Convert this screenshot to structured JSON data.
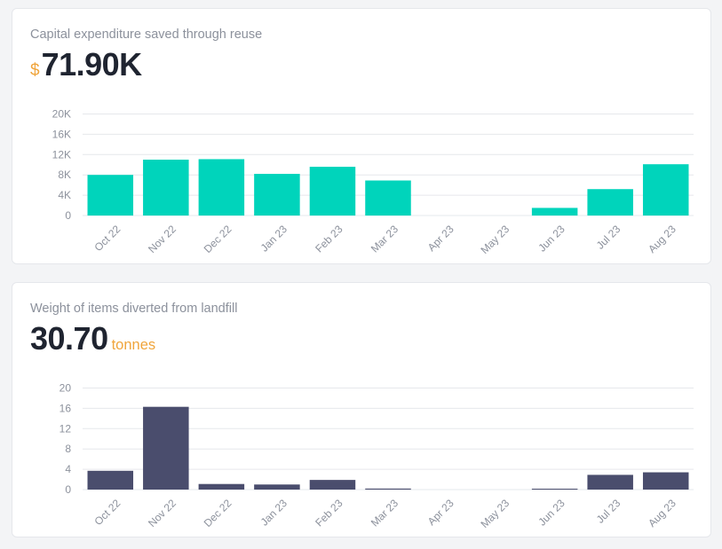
{
  "cards": [
    {
      "title": "Capital expenditure saved through reuse",
      "kpi": {
        "prefix": "$",
        "value": "71.90K",
        "suffix": ""
      }
    },
    {
      "title": "Weight of items diverted from landfill",
      "kpi": {
        "prefix": "",
        "value": "30.70",
        "suffix": "tonnes"
      }
    }
  ],
  "chart_data": [
    {
      "type": "bar",
      "categories": [
        "Oct 22",
        "Nov 22",
        "Dec 22",
        "Jan 23",
        "Feb 23",
        "Mar 23",
        "Apr 23",
        "May 23",
        "Jun 23",
        "Jul 23",
        "Aug 23"
      ],
      "values": [
        8000,
        11000,
        11100,
        8200,
        9600,
        6900,
        0,
        0,
        1500,
        5200,
        10100
      ],
      "yticks": [
        "0",
        "4K",
        "8K",
        "12K",
        "16K",
        "20K"
      ],
      "ylim": [
        0,
        20000
      ],
      "grid": true,
      "color": "#00d4bb"
    },
    {
      "type": "bar",
      "categories": [
        "Oct 22",
        "Nov 22",
        "Dec 22",
        "Jan 23",
        "Feb 23",
        "Mar 23",
        "Apr 23",
        "May 23",
        "Jun 23",
        "Jul 23",
        "Aug 23"
      ],
      "values": [
        3.7,
        16.3,
        1.1,
        1.0,
        1.9,
        0.2,
        0,
        0,
        0.1,
        2.9,
        3.4
      ],
      "yticks": [
        "0",
        "4",
        "8",
        "12",
        "16",
        "20"
      ],
      "ylim": [
        0,
        20
      ],
      "grid": true,
      "color": "#4a4d6d"
    }
  ]
}
